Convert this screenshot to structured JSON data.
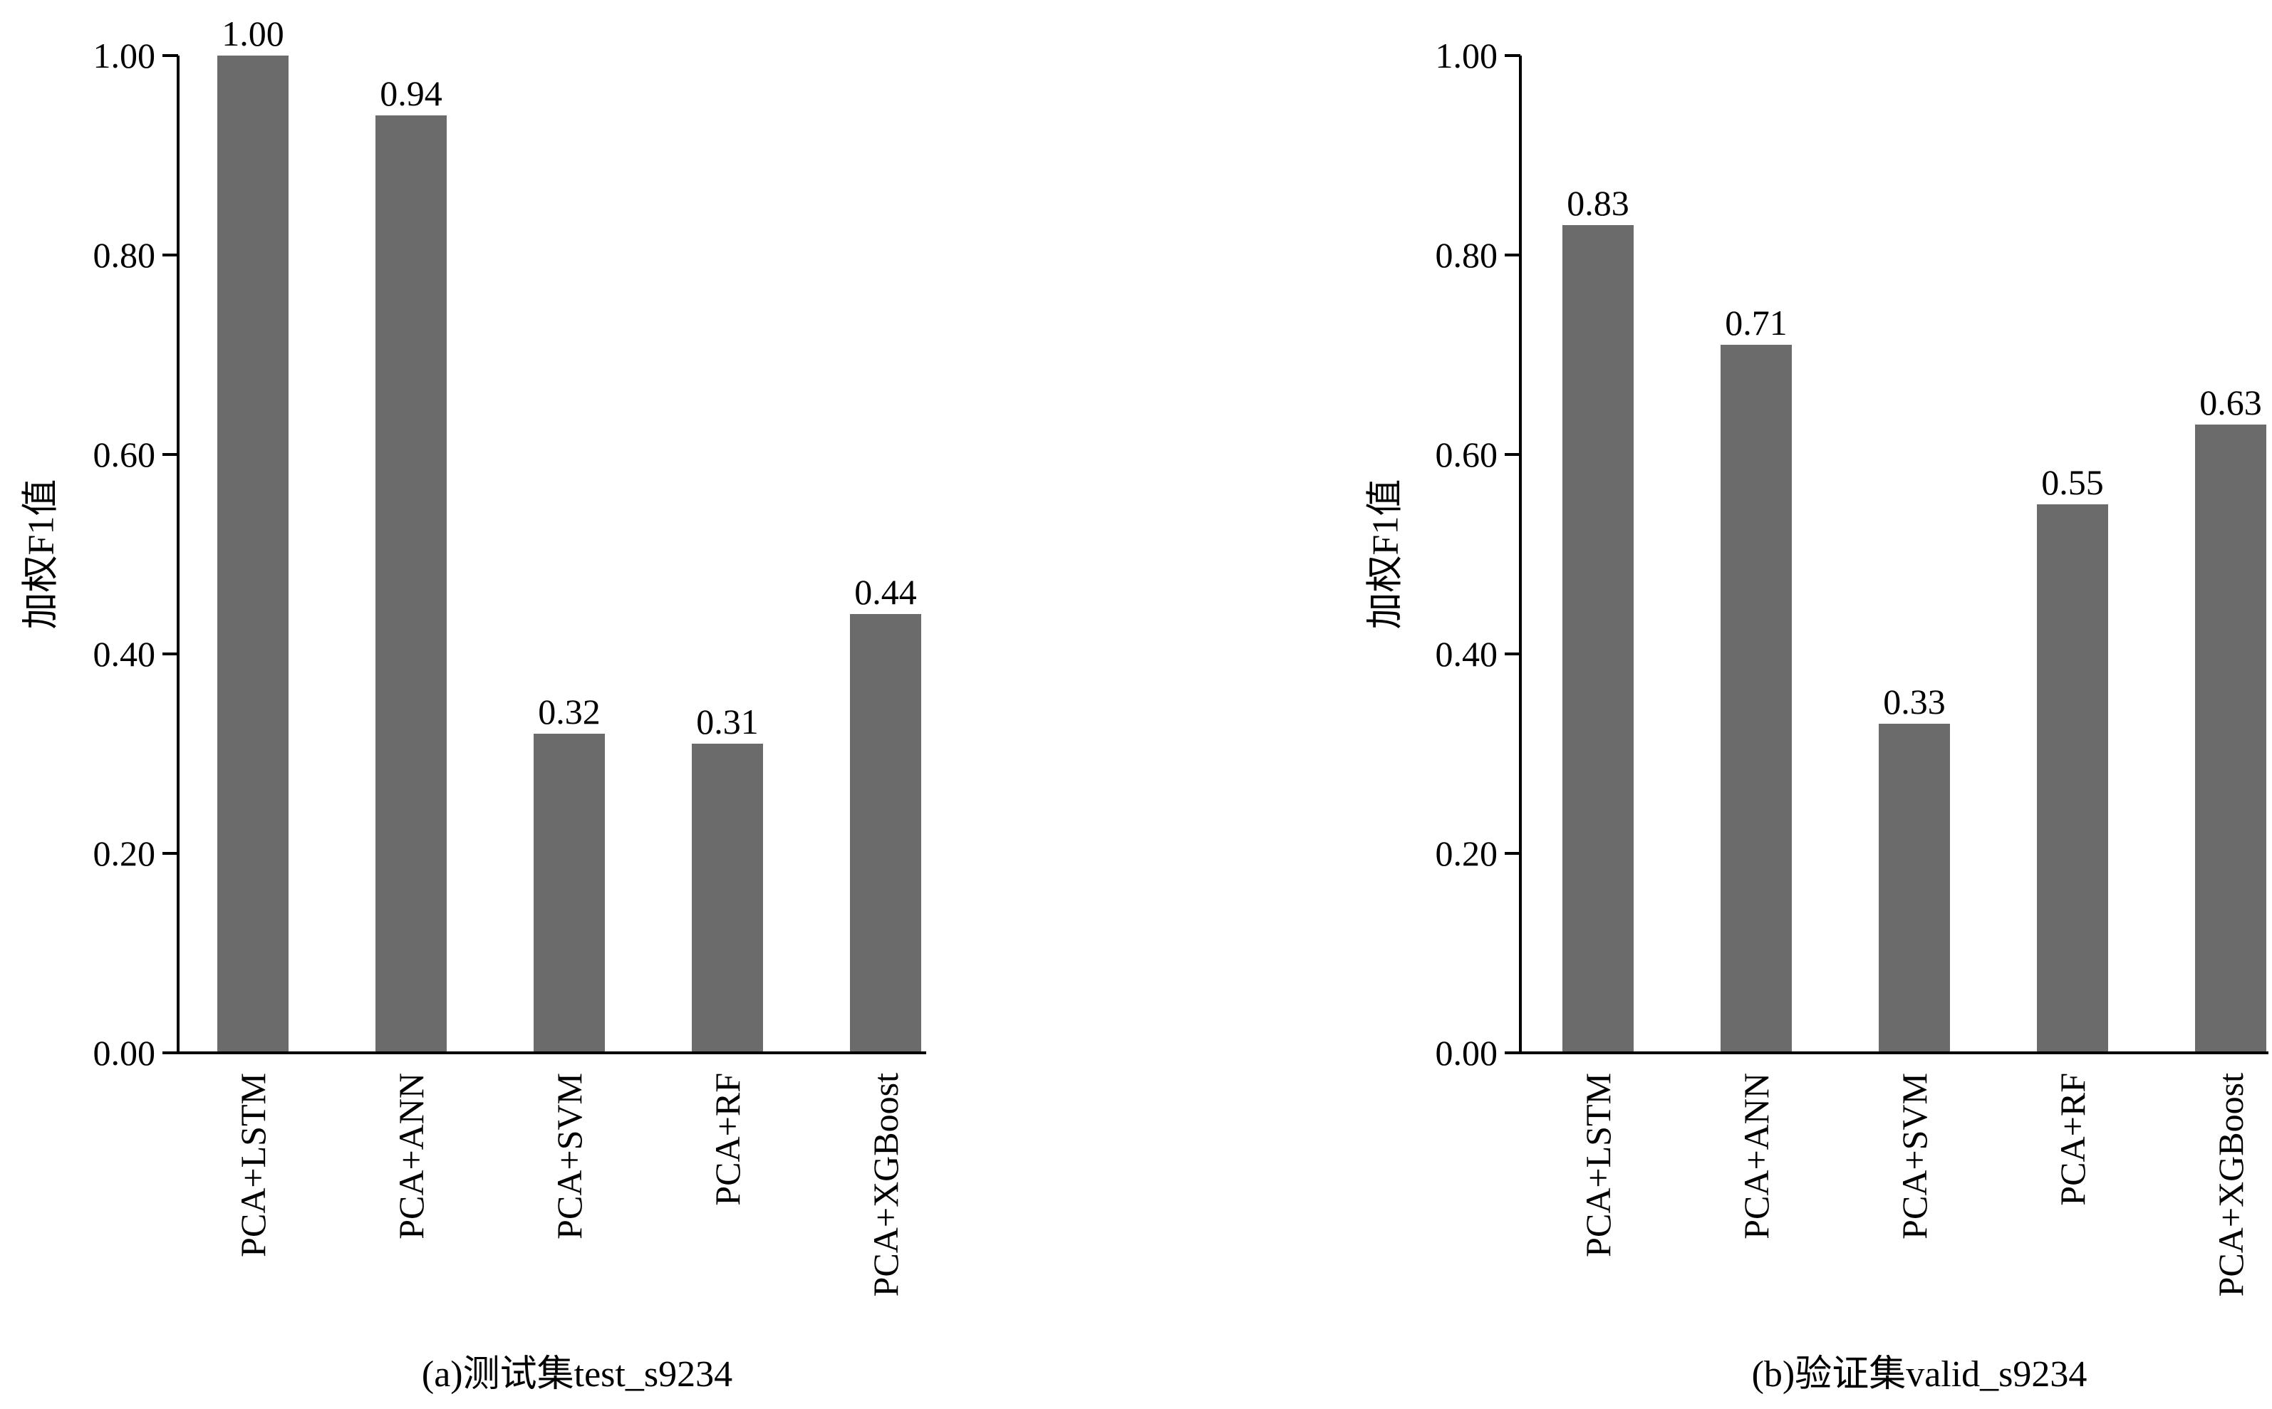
{
  "bar_color": "#6b6b6b",
  "chart_data": [
    {
      "type": "bar",
      "title": "",
      "caption": "(a)测试集test_s9234",
      "xlabel": "",
      "ylabel": "加权F1值",
      "categories": [
        "PCA+LSTM",
        "PCA+ANN",
        "PCA+SVM",
        "PCA+RF",
        "PCA+XGBoost"
      ],
      "values": [
        1.0,
        0.94,
        0.32,
        0.31,
        0.44
      ],
      "value_labels": [
        "1.00",
        "0.94",
        "0.32",
        "0.31",
        "0.44"
      ],
      "ylim": [
        0,
        1
      ],
      "yticks": [
        "0.00",
        "0.20",
        "0.40",
        "0.60",
        "0.80",
        "1.00"
      ],
      "grid": false
    },
    {
      "type": "bar",
      "title": "",
      "caption": "(b)验证集valid_s9234",
      "xlabel": "",
      "ylabel": "加权F1值",
      "categories": [
        "PCA+LSTM",
        "PCA+ANN",
        "PCA+SVM",
        "PCA+RF",
        "PCA+XGBoost"
      ],
      "values": [
        0.83,
        0.71,
        0.33,
        0.55,
        0.63
      ],
      "value_labels": [
        "0.83",
        "0.71",
        "0.33",
        "0.55",
        "0.63"
      ],
      "ylim": [
        0,
        1
      ],
      "yticks": [
        "0.00",
        "0.20",
        "0.40",
        "0.60",
        "0.80",
        "1.00"
      ],
      "grid": false
    }
  ]
}
